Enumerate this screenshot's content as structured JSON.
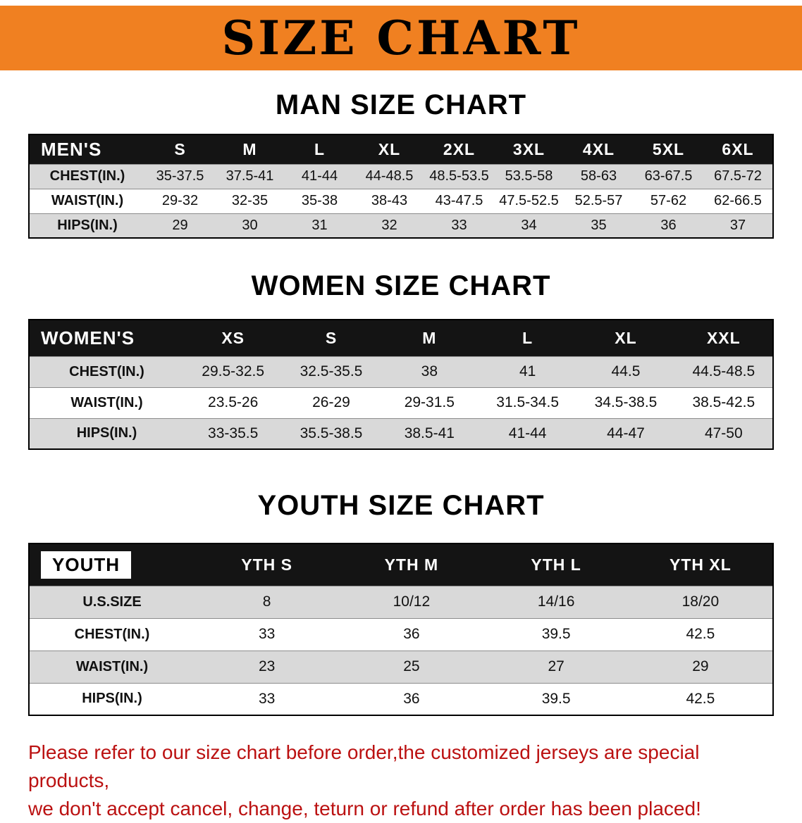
{
  "banner": {
    "title": "SIZE CHART"
  },
  "colors": {
    "banner_orange": "#f08021",
    "table_header_black": "#141414",
    "row_shaded_gray": "#d9d9d9",
    "notice_red": "#bb1111"
  },
  "sections": [
    {
      "id": "men",
      "heading": "MAN SIZE CHART",
      "table": {
        "header": [
          "MEN'S",
          "S",
          "M",
          "L",
          "XL",
          "2XL",
          "3XL",
          "4XL",
          "5XL",
          "6XL"
        ],
        "rows": [
          [
            "CHEST(IN.)",
            "35-37.5",
            "37.5-41",
            "41-44",
            "44-48.5",
            "48.5-53.5",
            "53.5-58",
            "58-63",
            "63-67.5",
            "67.5-72"
          ],
          [
            "WAIST(IN.)",
            "29-32",
            "32-35",
            "35-38",
            "38-43",
            "43-47.5",
            "47.5-52.5",
            "52.5-57",
            "57-62",
            "62-66.5"
          ],
          [
            "HIPS(IN.)",
            "29",
            "30",
            "31",
            "32",
            "33",
            "34",
            "35",
            "36",
            "37"
          ]
        ]
      }
    },
    {
      "id": "women",
      "heading": "WOMEN SIZE CHART",
      "table": {
        "header": [
          "WOMEN'S",
          "XS",
          "S",
          "M",
          "L",
          "XL",
          "XXL"
        ],
        "rows": [
          [
            "CHEST(IN.)",
            "29.5-32.5",
            "32.5-35.5",
            "38",
            "41",
            "44.5",
            "44.5-48.5"
          ],
          [
            "WAIST(IN.)",
            "23.5-26",
            "26-29",
            "29-31.5",
            "31.5-34.5",
            "34.5-38.5",
            "38.5-42.5"
          ],
          [
            "HIPS(IN.)",
            "33-35.5",
            "35.5-38.5",
            "38.5-41",
            "41-44",
            "44-47",
            "47-50"
          ]
        ]
      }
    },
    {
      "id": "youth",
      "heading": "YOUTH SIZE CHART",
      "table": {
        "header": [
          "YOUTH",
          "YTH S",
          "YTH M",
          "YTH L",
          "YTH XL"
        ],
        "rows": [
          [
            "U.S.SIZE",
            "8",
            "10/12",
            "14/16",
            "18/20"
          ],
          [
            "CHEST(IN.)",
            "33",
            "36",
            "39.5",
            "42.5"
          ],
          [
            "WAIST(IN.)",
            "23",
            "25",
            "27",
            "29"
          ],
          [
            "HIPS(IN.)",
            "33",
            "36",
            "39.5",
            "42.5"
          ]
        ]
      }
    }
  ],
  "footer": {
    "line1": "Please refer to our size chart before order,the customized jerseys are special products,",
    "line2": "we don't accept cancel, change, teturn or refund after order has been placed!"
  }
}
